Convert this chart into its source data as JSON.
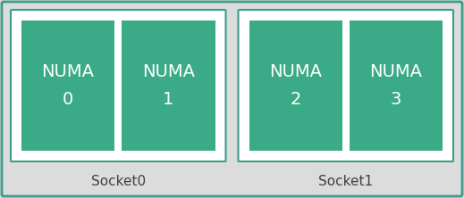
{
  "fig_bg": "#dcdcdc",
  "outer_border_color": "#3a9e8a",
  "socket_bg": "#ffffff",
  "socket_border_color": "#3a9e8a",
  "numa_color": "#3aaa87",
  "numa_text_color": "#ffffff",
  "socket_label_color": "#404040",
  "sockets": [
    {
      "label": "Socket0",
      "numa_labels": [
        "NUMA\n0",
        "NUMA\n1"
      ]
    },
    {
      "label": "Socket1",
      "numa_labels": [
        "NUMA\n2",
        "NUMA\n3"
      ]
    }
  ],
  "figsize": [
    5.19,
    2.22
  ],
  "dpi": 100
}
